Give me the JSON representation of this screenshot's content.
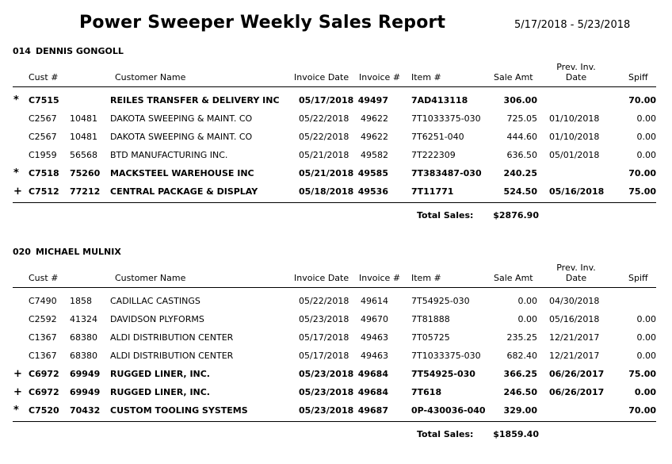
{
  "title": "Power Sweeper Weekly Sales Report",
  "date_range": "5/17/2018 - 5/23/2018",
  "columns": {
    "cust": "Cust #",
    "customer_name": "Customer Name",
    "invoice_date": "Invoice Date",
    "invoice": "Invoice #",
    "item": "Item #",
    "sale_amt": "Sale Amt",
    "prev_inv_line1": "Prev. Inv.",
    "prev_inv_line2": "Date",
    "spiff": "Spiff"
  },
  "total_label": "Total Sales:",
  "sections": [
    {
      "code": "014",
      "name": "DENNIS GONGOLL",
      "total": "$2876.90",
      "rows": [
        {
          "mark": "*",
          "bold": true,
          "cust": "C7515",
          "num": "",
          "name": "REILES TRANSFER & DELIVERY INC",
          "date": "05/17/2018",
          "invoice": "49497",
          "item": "7AD413118",
          "amt": "306.00",
          "prev": "",
          "spiff": "70.00"
        },
        {
          "mark": "",
          "bold": false,
          "cust": "C2567",
          "num": "10481",
          "name": "DAKOTA SWEEPING & MAINT. CO",
          "date": "05/22/2018",
          "invoice": "49622",
          "item": "7T1033375-030",
          "amt": "725.05",
          "prev": "01/10/2018",
          "spiff": "0.00"
        },
        {
          "mark": "",
          "bold": false,
          "cust": "C2567",
          "num": "10481",
          "name": "DAKOTA SWEEPING & MAINT. CO",
          "date": "05/22/2018",
          "invoice": "49622",
          "item": "7T6251-040",
          "amt": "444.60",
          "prev": "01/10/2018",
          "spiff": "0.00"
        },
        {
          "mark": "",
          "bold": false,
          "cust": "C1959",
          "num": "56568",
          "name": "BTD MANUFACTURING INC.",
          "date": "05/21/2018",
          "invoice": "49582",
          "item": "7T222309",
          "amt": "636.50",
          "prev": "05/01/2018",
          "spiff": "0.00"
        },
        {
          "mark": "*",
          "bold": true,
          "cust": "C7518",
          "num": "75260",
          "name": "MACKSTEEL WAREHOUSE INC",
          "date": "05/21/2018",
          "invoice": "49585",
          "item": "7T383487-030",
          "amt": "240.25",
          "prev": "",
          "spiff": "70.00"
        },
        {
          "mark": "+",
          "bold": true,
          "cust": "C7512",
          "num": "77212",
          "name": "CENTRAL PACKAGE & DISPLAY",
          "date": "05/18/2018",
          "invoice": "49536",
          "item": "7T11771",
          "amt": "524.50",
          "prev": "05/16/2018",
          "spiff": "75.00"
        }
      ]
    },
    {
      "code": "020",
      "name": "MICHAEL MULNIX",
      "total": "$1859.40",
      "rows": [
        {
          "mark": "",
          "bold": false,
          "cust": "C7490",
          "num": "1858",
          "name": "CADILLAC CASTINGS",
          "date": "05/22/2018",
          "invoice": "49614",
          "item": "7T54925-030",
          "amt": "0.00",
          "prev": "04/30/2018",
          "spiff": ""
        },
        {
          "mark": "",
          "bold": false,
          "cust": "C2592",
          "num": "41324",
          "name": "DAVIDSON PLYFORMS",
          "date": "05/23/2018",
          "invoice": "49670",
          "item": "7T81888",
          "amt": "0.00",
          "prev": "05/16/2018",
          "spiff": "0.00"
        },
        {
          "mark": "",
          "bold": false,
          "cust": "C1367",
          "num": "68380",
          "name": "ALDI DISTRIBUTION CENTER",
          "date": "05/17/2018",
          "invoice": "49463",
          "item": "7T05725",
          "amt": "235.25",
          "prev": "12/21/2017",
          "spiff": "0.00"
        },
        {
          "mark": "",
          "bold": false,
          "cust": "C1367",
          "num": "68380",
          "name": "ALDI DISTRIBUTION CENTER",
          "date": "05/17/2018",
          "invoice": "49463",
          "item": "7T1033375-030",
          "amt": "682.40",
          "prev": "12/21/2017",
          "spiff": "0.00"
        },
        {
          "mark": "+",
          "bold": true,
          "cust": "C6972",
          "num": "69949",
          "name": "RUGGED LINER, INC.",
          "date": "05/23/2018",
          "invoice": "49684",
          "item": "7T54925-030",
          "amt": "366.25",
          "prev": "06/26/2017",
          "spiff": "75.00"
        },
        {
          "mark": "+",
          "bold": true,
          "cust": "C6972",
          "num": "69949",
          "name": "RUGGED LINER, INC.",
          "date": "05/23/2018",
          "invoice": "49684",
          "item": "7T618",
          "amt": "246.50",
          "prev": "06/26/2017",
          "spiff": "0.00"
        },
        {
          "mark": "*",
          "bold": true,
          "cust": "C7520",
          "num": "70432",
          "name": "CUSTOM TOOLING SYSTEMS",
          "date": "05/23/2018",
          "invoice": "49687",
          "item": "0P-430036-040",
          "amt": "329.00",
          "prev": "",
          "spiff": "70.00"
        }
      ]
    }
  ]
}
